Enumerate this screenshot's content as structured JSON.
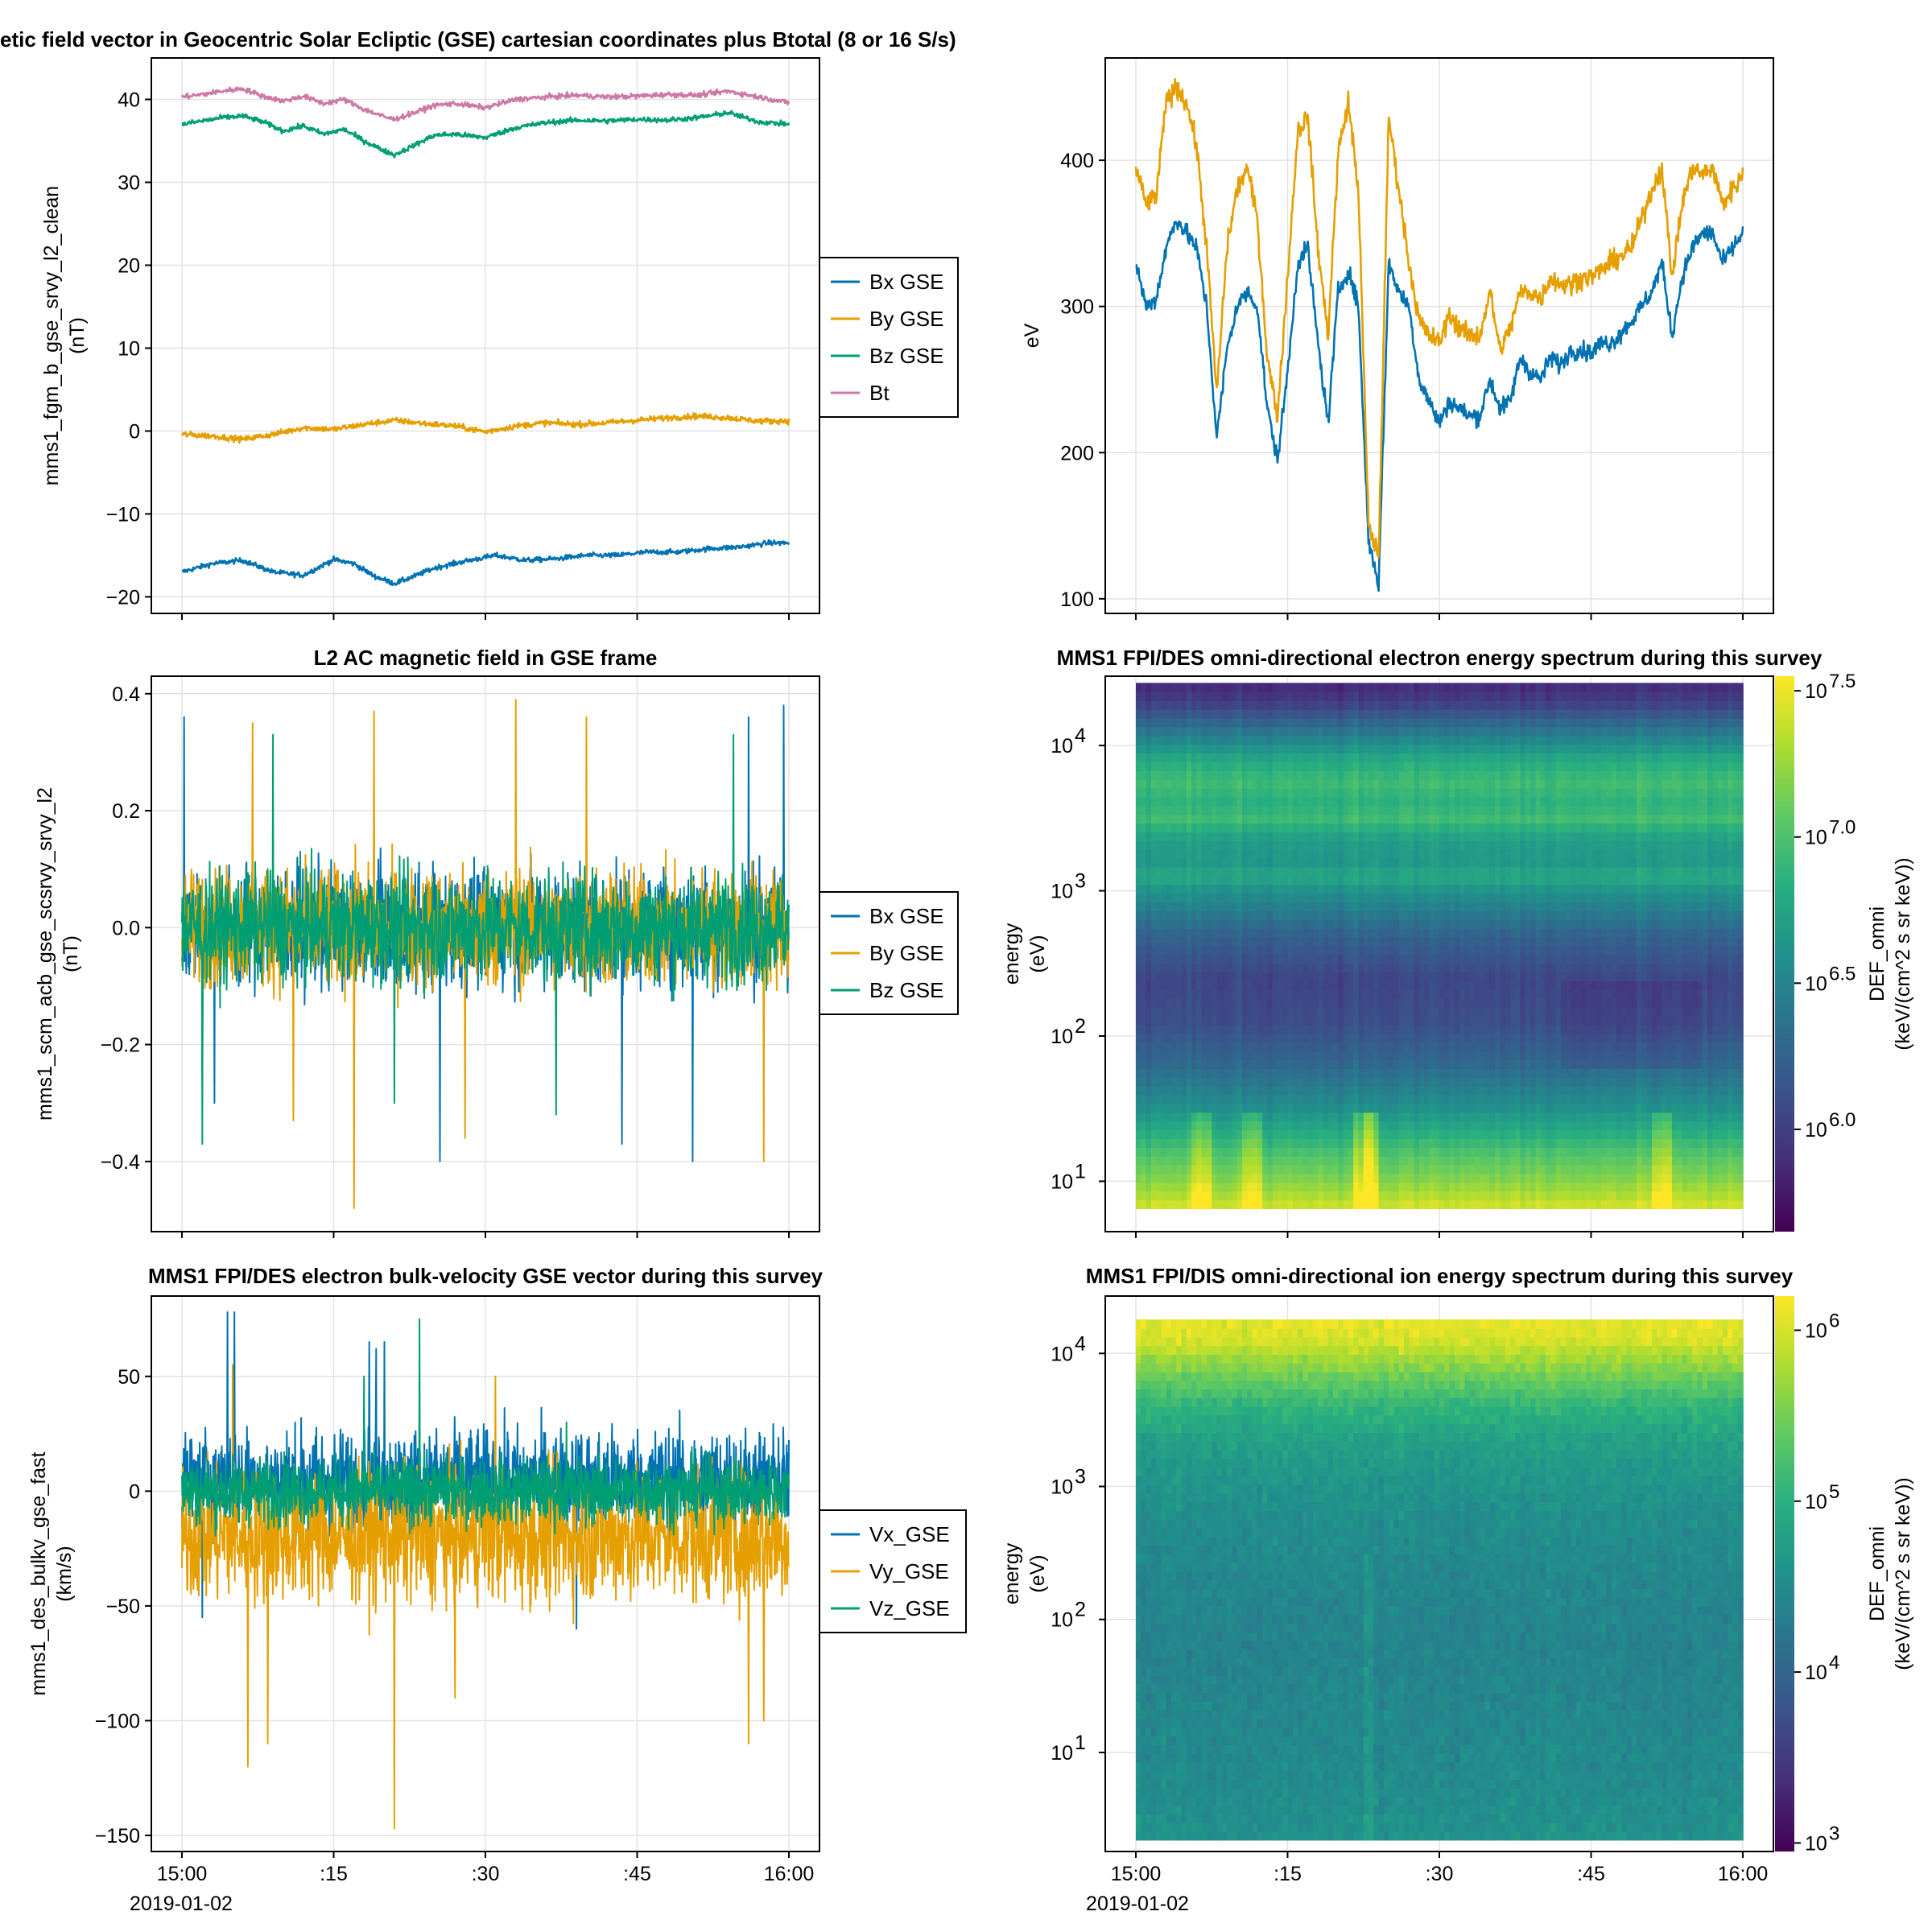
{
  "figure": {
    "date_label": "2019-01-02"
  },
  "chart_data": [
    {
      "id": "p1",
      "type": "line",
      "title": "etic field vector in Geocentric Solar Ecliptic (GSE) cartesian coordinates plus Btotal (8 or 16 S/s)",
      "ylabel": [
        "mms1_fgm_b_gse_srvy_l2_clean",
        "(nT)"
      ],
      "xlabel": "",
      "x_range_minutes": [
        0,
        60
      ],
      "ylim": [
        -22,
        45
      ],
      "yticks": [
        -20,
        -10,
        0,
        10,
        20,
        30,
        40
      ],
      "xticks": [
        0,
        15,
        30,
        45,
        60
      ],
      "series": [
        {
          "name": "Bx GSE",
          "color": "#0072b2",
          "x": [
            0,
            3,
            6,
            9,
            12,
            15,
            17,
            19,
            21,
            23,
            25,
            28,
            31,
            34,
            37,
            40,
            43,
            46,
            49,
            52,
            55,
            58,
            60
          ],
          "y": [
            -17,
            -16,
            -15.6,
            -17,
            -17.4,
            -15.5,
            -16,
            -17.5,
            -18.4,
            -17.5,
            -16.5,
            -15.7,
            -15,
            -15.6,
            -15.4,
            -15,
            -15,
            -14.6,
            -14.6,
            -14.2,
            -14,
            -13.5,
            -13.5
          ],
          "noise": 0.3
        },
        {
          "name": "By GSE",
          "color": "#e69f00",
          "x": [
            0,
            3,
            6,
            9,
            12,
            15,
            18,
            21,
            24,
            27,
            30,
            33,
            36,
            39,
            42,
            45,
            48,
            51,
            54,
            57,
            60
          ],
          "y": [
            -0.4,
            -0.6,
            -1.0,
            -0.4,
            0.4,
            0.2,
            0.8,
            1.3,
            0.9,
            0.6,
            -0.1,
            0.6,
            1.0,
            0.8,
            1.0,
            1.3,
            1.6,
            1.8,
            1.6,
            1.2,
            1.2
          ],
          "noise": 0.35
        },
        {
          "name": "Bz GSE",
          "color": "#009e73",
          "x": [
            0,
            2,
            4,
            6,
            8,
            10,
            12,
            14,
            16,
            18,
            20,
            21,
            23,
            25,
            27,
            30,
            33,
            36,
            39,
            42,
            45,
            48,
            51,
            54,
            57,
            60
          ],
          "y": [
            37,
            37.4,
            37.8,
            38,
            37.3,
            36.2,
            36.8,
            35.8,
            36.4,
            35,
            33.8,
            33.3,
            34.5,
            35.7,
            35.8,
            35.4,
            36.6,
            37.2,
            37.5,
            37.4,
            37.6,
            37.5,
            37.8,
            38.4,
            37.3,
            37
          ],
          "noise": 0.3
        },
        {
          "name": "Bt",
          "color": "#cc79a7",
          "x": [
            0,
            2,
            4,
            6,
            8,
            10,
            12,
            14,
            16,
            18,
            20,
            21,
            23,
            25,
            27,
            30,
            33,
            36,
            39,
            42,
            45,
            48,
            51,
            54,
            57,
            60
          ],
          "y": [
            40.3,
            40.6,
            41,
            41.3,
            40.4,
            39.8,
            40.4,
            39.5,
            40,
            38.8,
            37.9,
            37.6,
            38.4,
            39.3,
            39.5,
            39,
            40,
            40.3,
            40.5,
            40.3,
            40.4,
            40.6,
            40.5,
            41,
            40.3,
            39.6
          ],
          "noise": 0.3
        }
      ],
      "legend_position": "outside-right"
    },
    {
      "id": "p2",
      "type": "line",
      "title": "",
      "ylabel": [
        "eV"
      ],
      "xlabel": "",
      "x_range_minutes": [
        0,
        60
      ],
      "ylim": [
        90,
        470
      ],
      "yticks": [
        100,
        200,
        300,
        400
      ],
      "xticks": [
        0,
        15,
        30,
        45,
        60
      ],
      "series": [
        {
          "name": "blue",
          "color": "#0072b2",
          "x": [
            0,
            1,
            2,
            3,
            4,
            5,
            6,
            7,
            8,
            9,
            10,
            11,
            12,
            13,
            14,
            15,
            16,
            17,
            18,
            19,
            20,
            21,
            22,
            23,
            24,
            25,
            26,
            27,
            28,
            29,
            30,
            31,
            32,
            33,
            34,
            35,
            36,
            37,
            38,
            39,
            40,
            41,
            42,
            43,
            44,
            45,
            46,
            47,
            48,
            49,
            50,
            51,
            52,
            53,
            54,
            55,
            56,
            57,
            58,
            59,
            60
          ],
          "y": [
            330,
            300,
            305,
            340,
            360,
            350,
            340,
            300,
            210,
            270,
            300,
            310,
            300,
            230,
            195,
            255,
            330,
            340,
            275,
            220,
            310,
            325,
            300,
            140,
            110,
            330,
            310,
            300,
            250,
            235,
            220,
            235,
            230,
            225,
            225,
            250,
            230,
            235,
            265,
            255,
            250,
            265,
            260,
            270,
            270,
            268,
            275,
            275,
            282,
            290,
            300,
            310,
            330,
            280,
            320,
            340,
            350,
            350,
            330,
            340,
            350
          ],
          "noise": 6
        },
        {
          "name": "orange",
          "color": "#e69f00",
          "x": [
            0,
            1,
            2,
            3,
            4,
            5,
            6,
            7,
            8,
            9,
            10,
            11,
            12,
            13,
            14,
            15,
            16,
            17,
            18,
            19,
            20,
            21,
            22,
            23,
            24,
            25,
            26,
            27,
            28,
            29,
            30,
            31,
            32,
            33,
            34,
            35,
            36,
            37,
            38,
            39,
            40,
            41,
            42,
            43,
            44,
            45,
            46,
            47,
            48,
            49,
            50,
            51,
            52,
            53,
            54,
            55,
            56,
            57,
            58,
            59,
            60
          ],
          "y": [
            395,
            370,
            375,
            440,
            450,
            440,
            410,
            340,
            240,
            340,
            380,
            395,
            360,
            265,
            225,
            320,
            420,
            430,
            340,
            280,
            405,
            440,
            380,
            150,
            130,
            430,
            380,
            330,
            290,
            280,
            275,
            295,
            285,
            280,
            280,
            310,
            270,
            285,
            310,
            310,
            305,
            320,
            315,
            315,
            320,
            320,
            325,
            330,
            335,
            340,
            360,
            380,
            395,
            320,
            370,
            395,
            390,
            395,
            370,
            380,
            390
          ],
          "noise": 7
        }
      ],
      "legend_position": "none"
    },
    {
      "id": "p3",
      "type": "line",
      "title": "L2 AC magnetic field in GSE frame",
      "ylabel": [
        "mms1_scm_acb_gse_scsrvy_srvy_l2",
        "(nT)"
      ],
      "xlabel": "",
      "x_range_minutes": [
        0,
        60
      ],
      "ylim": [
        -0.52,
        0.43
      ],
      "yticks": [
        -0.4,
        -0.2,
        0.0,
        0.2,
        0.4
      ],
      "ytick_labels": [
        "-0.4",
        "-0.2",
        "0.0",
        "0.2",
        "0.4"
      ],
      "xticks": [
        0,
        15,
        30,
        45,
        60
      ],
      "series": [
        {
          "name": "Bx GSE",
          "color": "#0072b2",
          "x": [
            0,
            60
          ],
          "y": [
            0,
            0
          ],
          "noise": 0.1,
          "spikes": [
            [
              0.2,
              0.36
            ],
            [
              2,
              -0.27
            ],
            [
              25.5,
              -0.4
            ],
            [
              43.5,
              -0.37
            ],
            [
              50.5,
              -0.4
            ],
            [
              59.5,
              0.38
            ],
            [
              56,
              0.36
            ],
            [
              3.2,
              -0.3
            ]
          ]
        },
        {
          "name": "By GSE",
          "color": "#e69f00",
          "x": [
            0,
            60
          ],
          "y": [
            0,
            0
          ],
          "noise": 0.1,
          "spikes": [
            [
              17,
              -0.48
            ],
            [
              7,
              0.35
            ],
            [
              33,
              0.39
            ],
            [
              19,
              0.37
            ],
            [
              57.5,
              -0.4
            ],
            [
              40,
              0.36
            ],
            [
              11,
              -0.33
            ],
            [
              28,
              -0.36
            ]
          ]
        },
        {
          "name": "Bz GSE",
          "color": "#009e73",
          "x": [
            0,
            60
          ],
          "y": [
            0,
            0
          ],
          "noise": 0.09,
          "spikes": [
            [
              2,
              -0.37
            ],
            [
              21,
              -0.3
            ],
            [
              37,
              -0.32
            ],
            [
              54.5,
              0.33
            ],
            [
              9,
              0.33
            ]
          ]
        }
      ],
      "legend_position": "outside-right"
    },
    {
      "id": "p4",
      "type": "heatmap",
      "title": "MMS1 FPI/DES omni-directional electron energy spectrum during this survey",
      "ylabel": [
        "energy",
        "(eV)"
      ],
      "xlabel": "",
      "x_range_minutes": [
        0,
        60
      ],
      "y_scale": "log",
      "ylim": [
        4.5,
        30000
      ],
      "data_y_range": [
        6.5,
        27000
      ],
      "yticks": [
        10,
        100,
        1000,
        10000
      ],
      "xticks": [
        0,
        15,
        30,
        45,
        60
      ],
      "colorbar": {
        "label": [
          "DEF_omni",
          "(keV/(cm^2 s sr keV))"
        ],
        "log_range": [
          5.65,
          7.55
        ],
        "ticks": [
          6.0,
          6.5,
          7.0,
          7.5
        ],
        "tick_exponents": [
          "6.0",
          "6.5",
          "7.0",
          "7.5"
        ]
      },
      "spectrum_profile": {
        "log_energy": [
          0.8,
          1.0,
          1.2,
          1.5,
          1.8,
          2.1,
          2.4,
          2.7,
          3.0,
          3.1,
          3.2,
          3.35,
          3.5,
          3.6,
          3.75,
          3.9,
          4.1,
          4.3,
          4.45
        ],
        "log_flux": [
          7.45,
          7.2,
          7.0,
          6.6,
          6.3,
          6.1,
          6.05,
          6.25,
          6.6,
          6.8,
          6.65,
          6.7,
          6.95,
          6.85,
          6.95,
          6.8,
          6.4,
          6.0,
          5.85
        ]
      }
    },
    {
      "id": "p5",
      "type": "line",
      "title": "MMS1 FPI/DES electron bulk-velocity GSE vector during this survey",
      "ylabel": [
        "mms1_des_bulkv_gse_fast",
        "(km/s)"
      ],
      "xlabel": "",
      "x_range_minutes": [
        0,
        60
      ],
      "ylim": [
        -157,
        85
      ],
      "yticks": [
        -150,
        -100,
        -50,
        0,
        50
      ],
      "xticks": [
        0,
        15,
        30,
        45,
        60
      ],
      "xtick_labels": [
        "15:00",
        ":15",
        ":30",
        ":45",
        "16:00"
      ],
      "series": [
        {
          "name": "Vx_GSE",
          "color": "#0072b2",
          "x": [
            0,
            60
          ],
          "y": [
            5,
            5
          ],
          "noise": 22,
          "spikes": [
            [
              4.5,
              78
            ],
            [
              5.2,
              78
            ],
            [
              18.5,
              65
            ],
            [
              20,
              65
            ],
            [
              19.2,
              62
            ],
            [
              39,
              -60
            ],
            [
              2,
              -55
            ]
          ]
        },
        {
          "name": "Vy_GSE",
          "color": "#e69f00",
          "x": [
            0,
            60
          ],
          "y": [
            -20,
            -20
          ],
          "noise": 28,
          "spikes": [
            [
              21,
              -147
            ],
            [
              6.5,
              -120
            ],
            [
              8.5,
              -110
            ],
            [
              5,
              55
            ],
            [
              31,
              50
            ],
            [
              56,
              -110
            ],
            [
              57.5,
              -100
            ],
            [
              27,
              -90
            ]
          ]
        },
        {
          "name": "Vz_GSE",
          "color": "#009e73",
          "x": [
            0,
            60
          ],
          "y": [
            0,
            0
          ],
          "noise": 14,
          "spikes": [
            [
              23.5,
              75
            ],
            [
              18,
              50
            ],
            [
              38,
              30
            ]
          ]
        }
      ],
      "legend_position": "outside-right"
    },
    {
      "id": "p6",
      "type": "heatmap",
      "title": "MMS1 FPI/DIS omni-directional ion energy spectrum during this survey",
      "ylabel": [
        "energy",
        "(eV)"
      ],
      "xlabel": "",
      "x_range_minutes": [
        0,
        60
      ],
      "xtick_labels": [
        "15:00",
        ":15",
        ":30",
        ":45",
        "16:00"
      ],
      "y_scale": "log",
      "ylim": [
        1.8,
        27000
      ],
      "data_y_range": [
        2.2,
        18000
      ],
      "yticks": [
        10,
        100,
        1000,
        10000
      ],
      "xticks": [
        0,
        15,
        30,
        45,
        60
      ],
      "colorbar": {
        "label": [
          "DEF_omni",
          "(keV/(cm^2 s sr keV))"
        ],
        "log_range": [
          2.95,
          6.2
        ],
        "ticks": [
          3,
          4,
          5,
          6
        ],
        "tick_exponents": [
          "3",
          "4",
          "5",
          "6"
        ]
      },
      "spectrum_profile": {
        "log_energy": [
          0.35,
          0.8,
          1.3,
          1.8,
          2.3,
          2.8,
          3.3,
          3.6,
          3.9,
          4.1,
          4.26
        ],
        "log_flux": [
          4.6,
          4.5,
          4.45,
          4.4,
          4.45,
          4.55,
          4.75,
          5.05,
          5.6,
          6.0,
          6.1
        ]
      }
    }
  ]
}
